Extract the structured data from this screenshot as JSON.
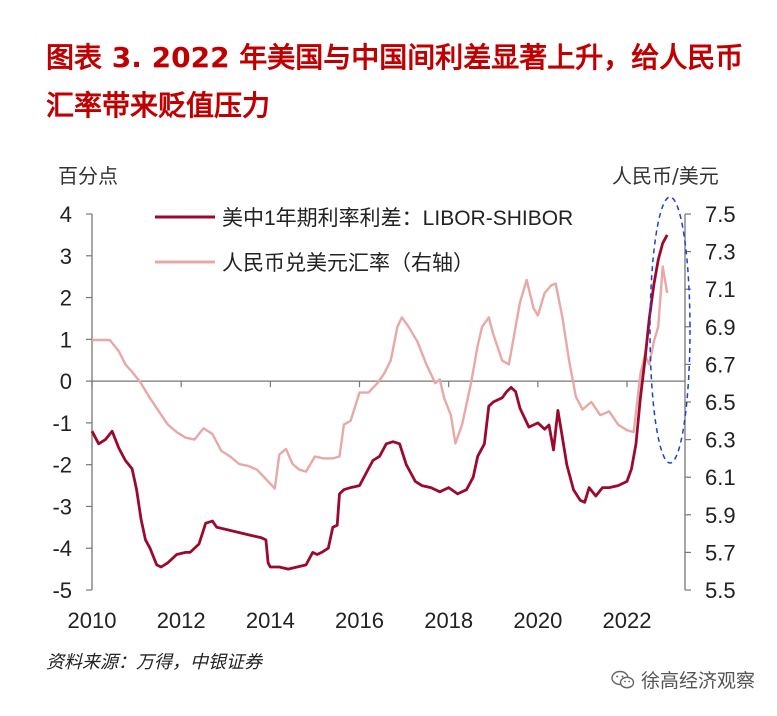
{
  "title": "图表 3.  2022 年美国与中国间利差显著上升，给人民币汇率带来贬值压力",
  "left_unit": "百分点",
  "right_unit": "人民币/美元",
  "source": "资料来源：万得，中银证券",
  "watermark": "徐高经济观察",
  "colors": {
    "spread": "#9b0a2e",
    "fx": "#e8a8a8",
    "title": "#c00000",
    "highlight": "#1f3fd0"
  },
  "chart_data": {
    "type": "line",
    "x_range": [
      2010,
      2023.3
    ],
    "x_ticks": [
      "2010",
      "2012",
      "2014",
      "2016",
      "2018",
      "2020",
      "2022"
    ],
    "y_left": {
      "range": [
        -5,
        4
      ],
      "ticks": [
        "4",
        "3",
        "2",
        "1",
        "0",
        "-1",
        "-2",
        "-3",
        "-4",
        "-5"
      ]
    },
    "y_right": {
      "range": [
        5.5,
        7.5
      ],
      "ticks": [
        "7.5",
        "7.3",
        "7.1",
        "6.9",
        "6.7",
        "6.5",
        "6.3",
        "6.1",
        "5.9",
        "5.7",
        "5.5"
      ]
    },
    "legend_placement": "top",
    "grid": false,
    "series": [
      {
        "name": "美中1年期利率利差：LIBOR-SHIBOR",
        "axis": "left",
        "x": [
          2010.0,
          2010.15,
          2010.3,
          2010.45,
          2010.6,
          2010.75,
          2010.9,
          2011.0,
          2011.1,
          2011.2,
          2011.3,
          2011.45,
          2011.55,
          2011.7,
          2011.9,
          2012.1,
          2012.2,
          2012.4,
          2012.55,
          2012.7,
          2012.8,
          2013.0,
          2013.2,
          2013.4,
          2013.6,
          2013.8,
          2013.9,
          2013.95,
          2014.0,
          2014.2,
          2014.4,
          2014.6,
          2014.8,
          2014.95,
          2015.05,
          2015.15,
          2015.3,
          2015.4,
          2015.5,
          2015.55,
          2015.65,
          2015.8,
          2016.0,
          2016.15,
          2016.3,
          2016.45,
          2016.6,
          2016.75,
          2016.9,
          2017.05,
          2017.15,
          2017.25,
          2017.4,
          2017.6,
          2017.8,
          2018.0,
          2018.2,
          2018.4,
          2018.55,
          2018.65,
          2018.8,
          2018.9,
          2019.0,
          2019.1,
          2019.2,
          2019.3,
          2019.4,
          2019.5,
          2019.6,
          2019.8,
          2020.0,
          2020.15,
          2020.25,
          2020.35,
          2020.45,
          2020.55,
          2020.65,
          2020.8,
          2020.95,
          2021.05,
          2021.15,
          2021.3,
          2021.45,
          2021.6,
          2021.8,
          2022.0,
          2022.1,
          2022.2,
          2022.3,
          2022.4,
          2022.5,
          2022.6,
          2022.7,
          2022.8,
          2022.9
        ],
        "values": [
          -1.2,
          -1.5,
          -1.4,
          -1.2,
          -1.6,
          -1.9,
          -2.1,
          -2.6,
          -3.3,
          -3.8,
          -4.0,
          -4.4,
          -4.45,
          -4.35,
          -4.15,
          -4.1,
          -4.1,
          -3.9,
          -3.4,
          -3.35,
          -3.5,
          -3.55,
          -3.6,
          -3.65,
          -3.7,
          -3.75,
          -3.8,
          -4.35,
          -4.45,
          -4.45,
          -4.5,
          -4.45,
          -4.4,
          -4.1,
          -4.15,
          -4.1,
          -4.0,
          -3.5,
          -3.45,
          -2.7,
          -2.6,
          -2.55,
          -2.5,
          -2.2,
          -1.9,
          -1.8,
          -1.5,
          -1.45,
          -1.5,
          -2.0,
          -2.2,
          -2.4,
          -2.5,
          -2.55,
          -2.65,
          -2.55,
          -2.7,
          -2.6,
          -2.3,
          -1.8,
          -1.5,
          -0.6,
          -0.5,
          -0.45,
          -0.4,
          -0.25,
          -0.15,
          -0.25,
          -0.65,
          -1.1,
          -1.0,
          -1.15,
          -1.05,
          -1.65,
          -0.7,
          -1.35,
          -2.0,
          -2.6,
          -2.85,
          -2.9,
          -2.55,
          -2.75,
          -2.55,
          -2.55,
          -2.5,
          -2.4,
          -2.1,
          -1.5,
          -0.4,
          0.5,
          1.5,
          2.3,
          2.9,
          3.3,
          3.5
        ]
      },
      {
        "name": "人民币兑美元汇率（右轴）",
        "axis": "right",
        "x": [
          2010.0,
          2010.2,
          2010.4,
          2010.5,
          2010.6,
          2010.75,
          2010.9,
          2011.1,
          2011.3,
          2011.5,
          2011.7,
          2011.9,
          2012.1,
          2012.3,
          2012.5,
          2012.7,
          2012.9,
          2013.1,
          2013.3,
          2013.5,
          2013.7,
          2013.9,
          2014.1,
          2014.2,
          2014.35,
          2014.5,
          2014.65,
          2014.8,
          2015.0,
          2015.2,
          2015.4,
          2015.55,
          2015.65,
          2015.8,
          2016.0,
          2016.2,
          2016.4,
          2016.55,
          2016.7,
          2016.85,
          2016.95,
          2017.1,
          2017.3,
          2017.5,
          2017.7,
          2017.8,
          2017.9,
          2018.05,
          2018.15,
          2018.3,
          2018.5,
          2018.65,
          2018.75,
          2018.9,
          2019.0,
          2019.2,
          2019.35,
          2019.5,
          2019.6,
          2019.75,
          2019.9,
          2020.0,
          2020.15,
          2020.3,
          2020.4,
          2020.55,
          2020.7,
          2020.85,
          2021.0,
          2021.2,
          2021.4,
          2021.6,
          2021.8,
          2022.0,
          2022.15,
          2022.3,
          2022.4,
          2022.5,
          2022.6,
          2022.7,
          2022.8,
          2022.9
        ],
        "values": [
          6.83,
          6.83,
          6.83,
          6.8,
          6.77,
          6.7,
          6.66,
          6.6,
          6.52,
          6.45,
          6.38,
          6.34,
          6.31,
          6.3,
          6.36,
          6.33,
          6.24,
          6.21,
          6.17,
          6.16,
          6.14,
          6.09,
          6.04,
          6.22,
          6.25,
          6.17,
          6.14,
          6.13,
          6.21,
          6.2,
          6.2,
          6.21,
          6.38,
          6.4,
          6.55,
          6.55,
          6.6,
          6.65,
          6.72,
          6.9,
          6.95,
          6.9,
          6.82,
          6.7,
          6.6,
          6.62,
          6.52,
          6.43,
          6.28,
          6.38,
          6.6,
          6.8,
          6.9,
          6.95,
          6.86,
          6.72,
          6.7,
          6.9,
          7.03,
          7.15,
          7.0,
          6.96,
          7.08,
          7.12,
          7.13,
          6.95,
          6.72,
          6.53,
          6.46,
          6.5,
          6.43,
          6.45,
          6.38,
          6.35,
          6.34,
          6.65,
          6.75,
          6.7,
          6.82,
          6.9,
          7.22,
          7.08
        ]
      }
    ]
  }
}
